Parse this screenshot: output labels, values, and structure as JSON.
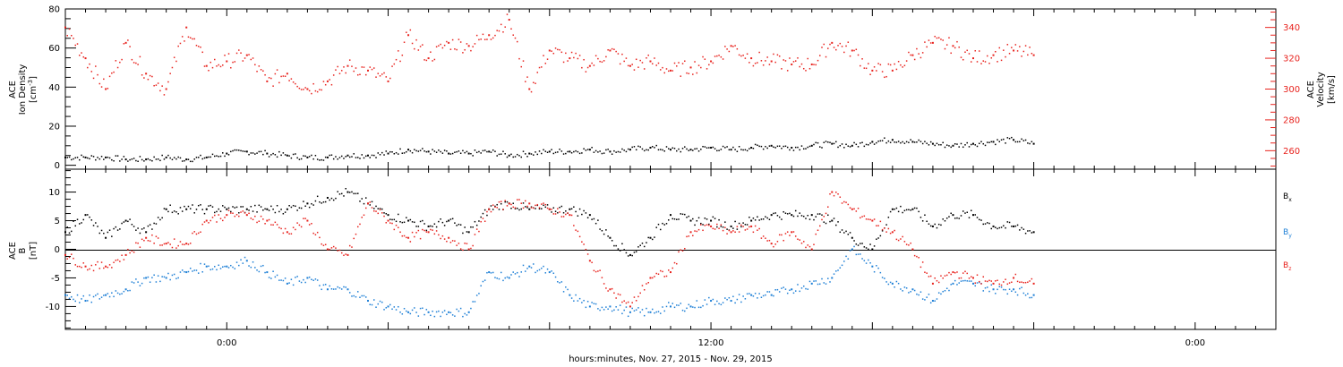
{
  "chart_data": [
    {
      "type": "scatter",
      "panel": "top",
      "x_range_hours": [
        -4,
        26
      ],
      "ylabel_left": [
        "ACE",
        "Ion Density",
        "[cm",
        "-3",
        "]"
      ],
      "ylabel_right": [
        "ACE",
        "Velocity",
        "[km/s]"
      ],
      "left_axis": {
        "ylim": [
          -2,
          80
        ],
        "ticks": [
          "0",
          "20",
          "40",
          "60",
          "80"
        ],
        "color": "#000000"
      },
      "right_axis": {
        "ylim": [
          248,
          352
        ],
        "ticks": [
          "260",
          "280",
          "300",
          "320",
          "340"
        ],
        "color": "#e8231e"
      },
      "series": [
        {
          "axis": "left",
          "color": "#000000",
          "x": [
            -4.0,
            -3.5,
            -3.0,
            -2.5,
            -2.0,
            -1.5,
            -1.0,
            -0.5,
            0.0,
            0.5,
            1.0,
            1.5,
            2.0,
            2.5,
            3.0,
            3.5,
            4.0,
            4.5,
            5.0,
            5.5,
            6.0,
            6.5,
            7.0,
            7.5,
            8.0,
            8.5,
            9.0,
            9.5,
            10.0,
            10.5,
            11.0,
            11.5,
            12.0,
            12.5,
            13.0,
            13.5,
            14.0,
            14.5,
            15.0,
            15.5,
            16.0,
            16.5,
            17.0,
            17.5,
            18.0,
            18.5,
            19.0,
            19.5,
            20.0
          ],
          "y": [
            4,
            4,
            4,
            3,
            3,
            4,
            3,
            4,
            6,
            7,
            6,
            5,
            4,
            4,
            5,
            5,
            6,
            8,
            7,
            6,
            6,
            7,
            5,
            6,
            7,
            7,
            8,
            7,
            8,
            9,
            8,
            8,
            9,
            8,
            9,
            10,
            9,
            10,
            11,
            10,
            12,
            13,
            12,
            11,
            10,
            11,
            12,
            13,
            11
          ]
        },
        {
          "axis": "right",
          "color": "#e8231e",
          "x": [
            -4.0,
            -3.5,
            -3.0,
            -2.5,
            -2.0,
            -1.5,
            -1.0,
            -0.5,
            0.0,
            0.5,
            1.0,
            1.5,
            2.0,
            2.5,
            3.0,
            3.5,
            4.0,
            4.5,
            5.0,
            5.5,
            6.0,
            6.5,
            7.0,
            7.5,
            8.0,
            8.5,
            9.0,
            9.5,
            10.0,
            10.5,
            11.0,
            11.5,
            12.0,
            12.5,
            13.0,
            13.5,
            14.0,
            14.5,
            15.0,
            15.5,
            16.0,
            16.5,
            17.0,
            17.5,
            18.0,
            18.5,
            19.0,
            19.5,
            20.0
          ],
          "y": [
            340,
            320,
            300,
            330,
            310,
            300,
            340,
            315,
            318,
            322,
            305,
            310,
            300,
            305,
            315,
            312,
            305,
            335,
            320,
            330,
            328,
            335,
            345,
            300,
            325,
            320,
            315,
            325,
            315,
            318,
            312,
            314,
            318,
            328,
            320,
            318,
            316,
            316,
            330,
            325,
            312,
            312,
            322,
            330,
            328,
            320,
            322,
            325,
            322
          ]
        }
      ]
    },
    {
      "type": "scatter",
      "panel": "bottom",
      "x_range_hours": [
        -4,
        26
      ],
      "ylabel_left": [
        "ACE",
        "B",
        "[nT]"
      ],
      "left_axis": {
        "ylim": [
          -14,
          14
        ],
        "ticks": [
          "-10",
          "-5",
          "0",
          "5",
          "10"
        ]
      },
      "x_ticks": [
        {
          "hour": 0,
          "label": "0:00"
        },
        {
          "hour": 12,
          "label": "12:00"
        },
        {
          "hour": 24,
          "label": "0:00"
        }
      ],
      "xlabel": "hours:minutes, Nov. 27, 2015 - Nov. 29, 2015",
      "legend": [
        {
          "base": "B",
          "sub": "x",
          "color": "#000000"
        },
        {
          "base": "B",
          "sub": "y",
          "color": "#1d7fd6"
        },
        {
          "base": "B",
          "sub": "z",
          "color": "#e8231e"
        }
      ],
      "series": [
        {
          "name": "Bx",
          "color": "#000000",
          "x": [
            -4.0,
            -3.5,
            -3.0,
            -2.5,
            -2.0,
            -1.5,
            -1.0,
            -0.5,
            0.0,
            0.5,
            1.0,
            1.5,
            2.0,
            2.5,
            3.0,
            3.5,
            4.0,
            4.5,
            5.0,
            5.5,
            6.0,
            6.5,
            7.0,
            7.5,
            8.0,
            8.5,
            9.0,
            9.5,
            10.0,
            10.5,
            11.0,
            11.5,
            12.0,
            12.5,
            13.0,
            13.5,
            14.0,
            14.5,
            15.0,
            15.5,
            16.0,
            16.5,
            17.0,
            17.5,
            18.0,
            18.5,
            19.0,
            19.5,
            20.0
          ],
          "y": [
            3,
            6,
            2,
            5,
            3,
            7,
            7,
            7,
            7,
            7,
            7,
            7,
            8,
            9,
            10,
            8,
            6,
            5,
            4,
            5,
            3,
            7,
            8,
            7,
            7,
            7,
            6,
            2,
            -1,
            2,
            6,
            5,
            5,
            4,
            5,
            6,
            6,
            6,
            5,
            2,
            0,
            7,
            7,
            4,
            6,
            6,
            4,
            4,
            3
          ]
        },
        {
          "name": "By",
          "color": "#1d7fd6",
          "x": [
            -4.0,
            -3.5,
            -3.0,
            -2.5,
            -2.0,
            -1.5,
            -1.0,
            -0.5,
            0.0,
            0.5,
            1.0,
            1.5,
            2.0,
            2.5,
            3.0,
            3.5,
            4.0,
            4.5,
            5.0,
            5.5,
            6.0,
            6.5,
            7.0,
            7.5,
            8.0,
            8.5,
            9.0,
            9.5,
            10.0,
            10.5,
            11.0,
            11.5,
            12.0,
            12.5,
            13.0,
            13.5,
            14.0,
            14.5,
            15.0,
            15.5,
            16.0,
            16.5,
            17.0,
            17.5,
            18.0,
            18.5,
            19.0,
            19.5,
            20.0
          ],
          "y": [
            -8,
            -9,
            -8,
            -7,
            -5,
            -5,
            -4,
            -3,
            -3,
            -2,
            -4,
            -6,
            -5,
            -7,
            -7,
            -9,
            -10,
            -11,
            -11,
            -11,
            -11,
            -4,
            -5,
            -3,
            -4,
            -8,
            -10,
            -10,
            -11,
            -11,
            -10,
            -10,
            -9,
            -9,
            -8,
            -8,
            -7,
            -6,
            -5,
            0,
            -3,
            -6,
            -7,
            -9,
            -6,
            -6,
            -7,
            -7,
            -8
          ]
        },
        {
          "name": "Bz",
          "color": "#e8231e",
          "x": [
            -4.0,
            -3.5,
            -3.0,
            -2.5,
            -2.0,
            -1.5,
            -1.0,
            -0.5,
            0.0,
            0.5,
            1.0,
            1.5,
            2.0,
            2.5,
            3.0,
            3.5,
            4.0,
            4.5,
            5.0,
            5.5,
            6.0,
            6.5,
            7.0,
            7.5,
            8.0,
            8.5,
            9.0,
            9.5,
            10.0,
            10.5,
            11.0,
            11.5,
            12.0,
            12.5,
            13.0,
            13.5,
            14.0,
            14.5,
            15.0,
            15.5,
            16.0,
            16.5,
            17.0,
            17.5,
            18.0,
            18.5,
            19.0,
            19.5,
            20.0
          ],
          "y": [
            -1,
            -3,
            -3,
            -1,
            2,
            1,
            1,
            5,
            6,
            6,
            5,
            3,
            5,
            0,
            -1,
            8,
            5,
            2,
            3,
            2,
            0,
            7,
            8,
            8,
            7,
            6,
            -2,
            -7,
            -10,
            -5,
            -4,
            3,
            4,
            3,
            4,
            1,
            3,
            0,
            10,
            7,
            5,
            3,
            0,
            -6,
            -4,
            -5,
            -6,
            -5,
            -6
          ]
        }
      ]
    }
  ]
}
